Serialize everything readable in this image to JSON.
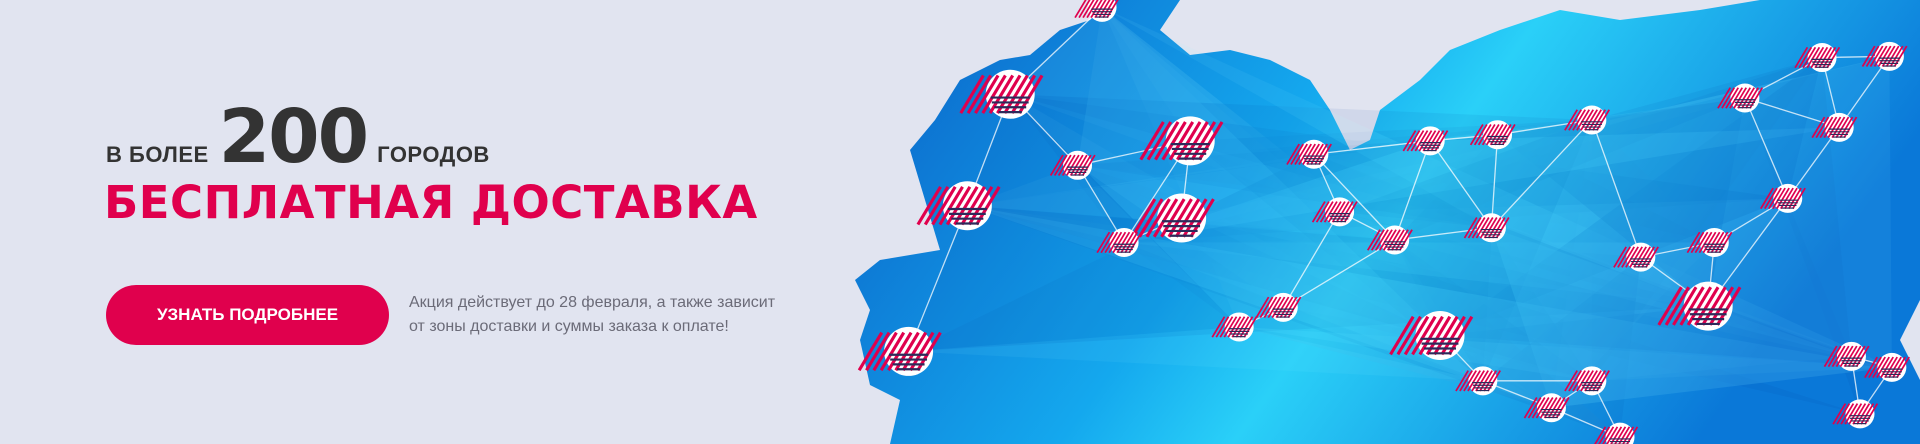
{
  "banner": {
    "prefix": "В БОЛЕЕ",
    "number": "200",
    "suffix": "ГОРОДОВ",
    "title": "БЕСПЛАТНАЯ ДОСТАВКА",
    "button_label": "УЗНАТЬ ПОДРОБНЕЕ",
    "note_line1": "Акция действует до 28 февраля, а также зависит",
    "note_line2": "от зоны доставки и суммы заказа к оплате!"
  },
  "colors": {
    "accent": "#e0004d",
    "background": "#e1e4f0",
    "map_dark": "#0a6fd0",
    "map_light": "#22c8f5",
    "logo_stripes": "#2e2a5a"
  },
  "map": {
    "icon": "delivery-network-map",
    "node_icon": "company-logo-icon"
  }
}
